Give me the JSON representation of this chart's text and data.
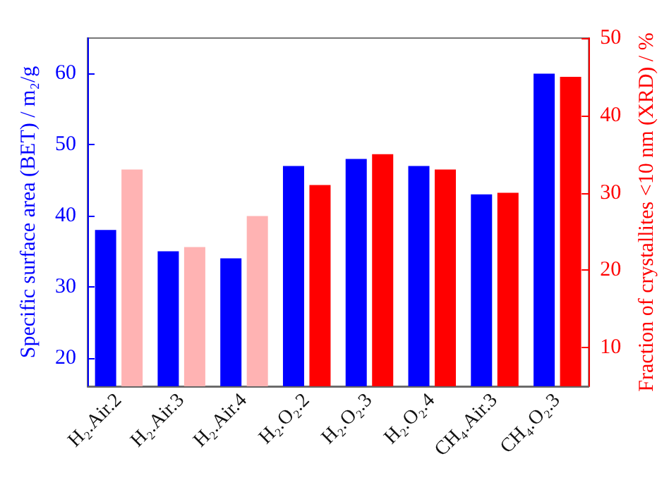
{
  "chart_data": {
    "type": "bar",
    "categories": [
      "H₂.Air.2",
      "H₂.Air.3",
      "H₂.Air.4",
      "H₂.O₂.2",
      "H₂.O₂.3",
      "H₂.O₂.4",
      "CH₄.Air.3",
      "CH₄.O₂.3"
    ],
    "series": [
      {
        "color": "#0000ff",
        "values": [
          38,
          35,
          34,
          47,
          48,
          47,
          43,
          60
        ]
      },
      {
        "color": "#ff0000",
        "axis": "y2",
        "colors": [
          "#ffb3b3",
          "#ffb3b3",
          "#ffb3b3",
          "#ff0000",
          "#ff0000",
          "#ff0000",
          "#ff0000",
          "#ff0000"
        ],
        "values": [
          33,
          23,
          27,
          31,
          35,
          33,
          30,
          45
        ]
      }
    ],
    "ylabel": "Specific surface area (BET) / m₂/g",
    "y2label": "Fraction of crystallites <10 nm (XRD) / %",
    "ylim": [
      16,
      65
    ],
    "yticks": [
      20,
      30,
      40,
      50,
      60
    ],
    "y2lim": [
      5,
      50
    ],
    "y2ticks": [
      10,
      20,
      30,
      40,
      50
    ]
  }
}
